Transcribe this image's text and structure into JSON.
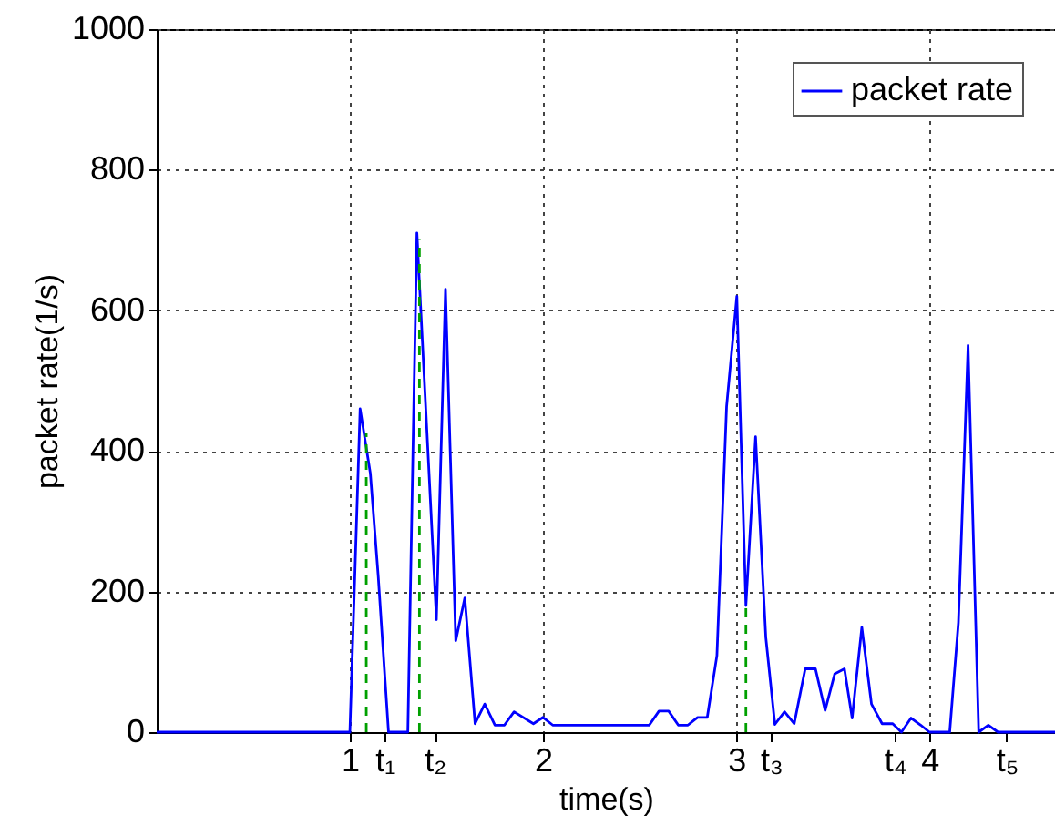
{
  "chart_data": {
    "type": "line",
    "xlabel": "time(s)",
    "ylabel": "packet rate(1/s)",
    "xlim": [
      0,
      4.65
    ],
    "ylim": [
      0,
      1000
    ],
    "xticks": [
      1,
      {
        "value": 1.18,
        "label": "t₁"
      },
      {
        "value": 1.44,
        "label": "t₂"
      },
      2,
      3,
      {
        "value": 3.18,
        "label": "t₃"
      },
      {
        "value": 3.82,
        "label": "t₄"
      },
      4,
      {
        "value": 4.4,
        "label": "t₅"
      }
    ],
    "yticks": [
      0,
      200,
      400,
      600,
      800,
      1000
    ],
    "grid": true,
    "legend": "top right",
    "series": [
      {
        "name": "packet rate",
        "color": "#0000ff",
        "x": [
          0,
          1.0,
          1.053,
          1.106,
          1.147,
          1.2,
          1.3,
          1.347,
          1.448,
          1.495,
          1.548,
          1.595,
          1.648,
          1.698,
          1.751,
          1.8,
          1.85,
          1.95,
          2.0,
          2.05,
          2.55,
          2.6,
          2.65,
          2.7,
          2.75,
          2.8,
          2.85,
          2.9,
          2.95,
          3.003,
          3.05,
          3.1,
          3.153,
          3.2,
          3.25,
          3.3,
          3.357,
          3.41,
          3.46,
          3.51,
          3.56,
          3.6,
          3.65,
          3.7,
          3.755,
          3.81,
          3.855,
          3.905,
          3.955,
          4.0,
          4.105,
          4.15,
          4.2,
          4.255,
          4.305,
          4.355,
          4.65
        ],
        "values": [
          0,
          0,
          460,
          368,
          221,
          0,
          0,
          710,
          160,
          630,
          130,
          191,
          12,
          40,
          10,
          10,
          29,
          12,
          21,
          10,
          10,
          30,
          30,
          10,
          10,
          21,
          21,
          109,
          463,
          620,
          180,
          420,
          135,
          11,
          29,
          12,
          90,
          90,
          31,
          83,
          90,
          20,
          149,
          40,
          12,
          12,
          0,
          20,
          10,
          0,
          0,
          156,
          550,
          0,
          10,
          0,
          0
        ]
      },
      {
        "color": "#00a000",
        "line_style": "dashed",
        "x": [
          1.085,
          1.085
        ],
        "values": [
          0,
          425
        ]
      },
      {
        "color": "#00a000",
        "line_style": "dashed",
        "x": [
          1.36,
          1.36
        ],
        "values": [
          0,
          700
        ]
      },
      {
        "color": "#00a000",
        "line_style": "dashed",
        "x": [
          3.05,
          3.05
        ],
        "values": [
          0,
          180
        ]
      }
    ]
  }
}
